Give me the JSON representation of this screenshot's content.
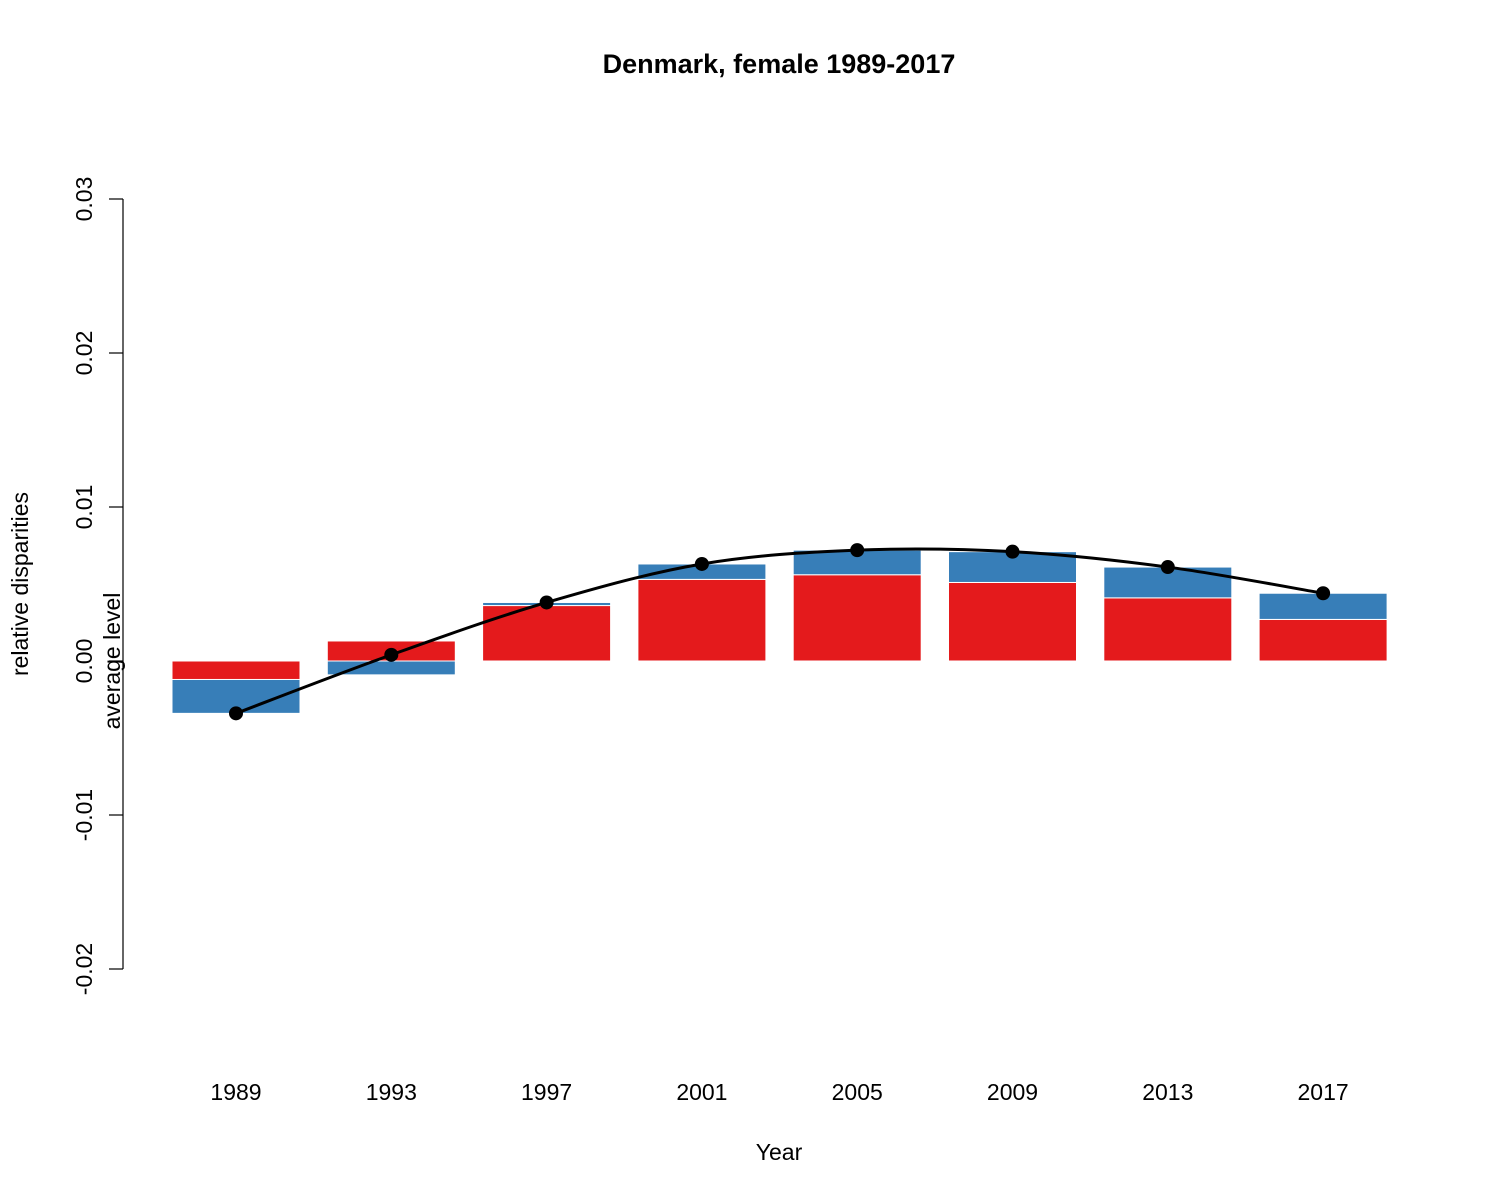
{
  "chart_data": {
    "type": "bar",
    "subtype": "stacked-diverging-with-line",
    "title": "Denmark, female 1989-2017",
    "xlabel": "Year",
    "ylabel": "relative disparities",
    "ylim": [
      -0.02,
      0.03
    ],
    "yticks": [
      "-0.02",
      "-0.01",
      "0.00",
      "0.01",
      "0.02",
      "0.03"
    ],
    "ytick_values": [
      -0.02,
      -0.01,
      0.0,
      0.01,
      0.02,
      0.03
    ],
    "grid": false,
    "legend": "none",
    "annotations": [
      {
        "text": "average level",
        "y": 0.0
      }
    ],
    "categories": [
      "1989",
      "1993",
      "1997",
      "2001",
      "2005",
      "2009",
      "2013",
      "2017"
    ],
    "series": [
      {
        "color": "#E41A1C",
        "values": [
          -0.0012,
          0.0013,
          0.0036,
          0.0053,
          0.0056,
          0.0051,
          0.0041,
          0.0027
        ]
      },
      {
        "color": "#377EB8",
        "values": [
          -0.0022,
          -0.0009,
          0.0002,
          0.001,
          0.0016,
          0.002,
          0.002,
          0.0017
        ]
      }
    ],
    "line": {
      "color": "#000000",
      "values": [
        -0.0034,
        0.0004,
        0.0038,
        0.0063,
        0.0072,
        0.0071,
        0.0061,
        0.0044
      ]
    }
  }
}
